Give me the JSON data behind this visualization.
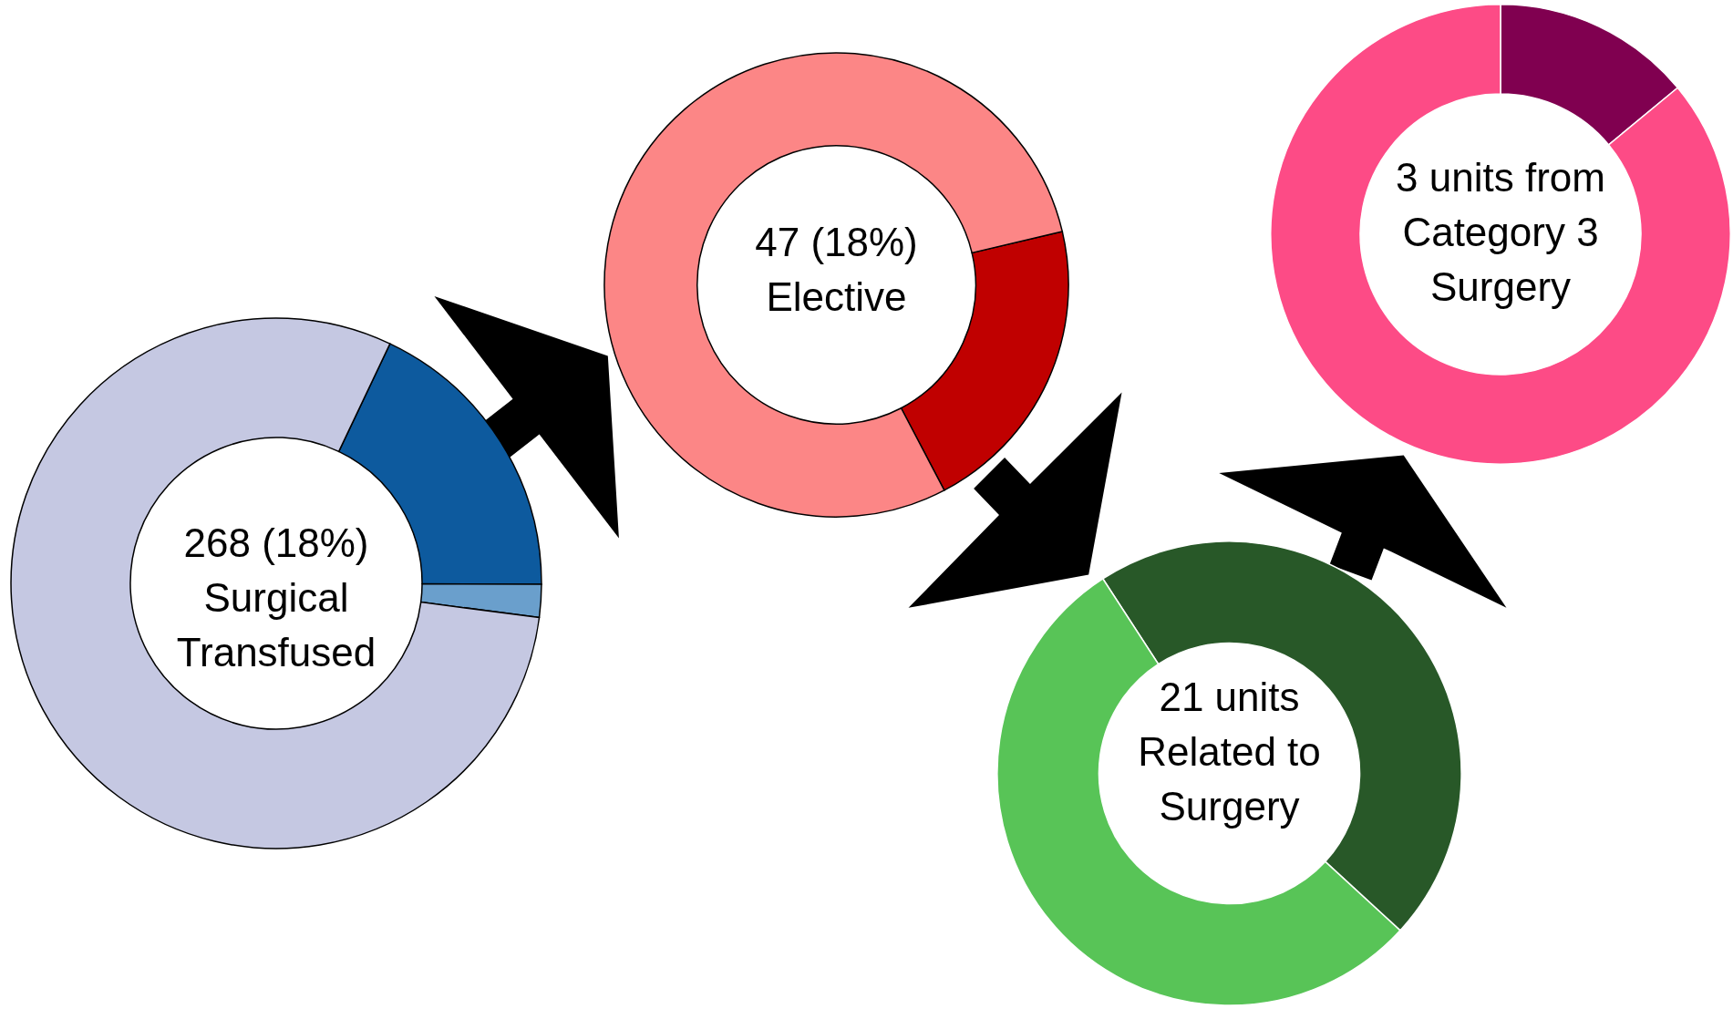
{
  "chart_data": [
    {
      "type": "donut",
      "categories": [
        null,
        null,
        null
      ],
      "values": [
        18,
        2,
        80
      ],
      "colors": [
        "#0d5a9e",
        "#6a9fcc",
        "#c5c8e2"
      ],
      "annotations": [
        "268 (18%)",
        "Surgical",
        "Transfused"
      ]
    },
    {
      "type": "donut",
      "categories": [
        null,
        null
      ],
      "values": [
        21,
        79
      ],
      "colors": [
        "#c00000",
        "#fc8686"
      ],
      "annotations": [
        "47 (18%)",
        "Elective"
      ]
    },
    {
      "type": "donut",
      "categories": [
        null,
        null
      ],
      "values": [
        46,
        54
      ],
      "colors": [
        "#285828",
        "#58c457"
      ],
      "annotations": [
        "21 units",
        "Related to",
        "Surgery"
      ]
    },
    {
      "type": "donut",
      "categories": [
        null,
        null
      ],
      "values": [
        14,
        86
      ],
      "colors": [
        "#800050",
        "#fd4b86"
      ],
      "annotations": [
        "3 units from",
        "Category 3",
        "Surgery"
      ]
    }
  ]
}
